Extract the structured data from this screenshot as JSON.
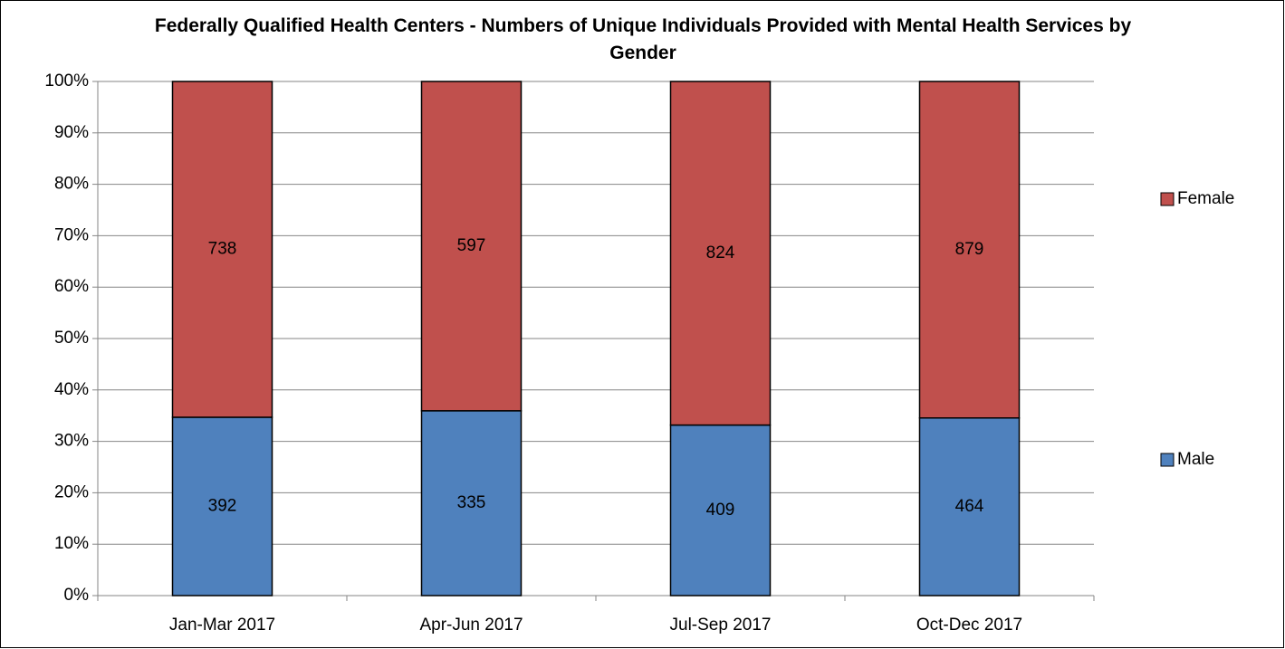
{
  "chart_data": {
    "type": "bar",
    "stacking": "percent",
    "title": "Federally Qualified Health Centers - Numbers of Unique Individuals Provided with Mental Health Services by Gender",
    "categories": [
      "Jan-Mar 2017",
      "Apr-Jun 2017",
      "Jul-Sep 2017",
      "Oct-Dec 2017"
    ],
    "series": [
      {
        "name": "Male",
        "color": "#4f81bd",
        "values": [
          392,
          335,
          409,
          464
        ]
      },
      {
        "name": "Female",
        "color": "#c0504d",
        "values": [
          738,
          597,
          824,
          879
        ]
      }
    ],
    "ylim": [
      0,
      100
    ],
    "yticks": [
      {
        "value": 0,
        "label": "0%"
      },
      {
        "value": 10,
        "label": "10%"
      },
      {
        "value": 20,
        "label": "20%"
      },
      {
        "value": 30,
        "label": "30%"
      },
      {
        "value": 40,
        "label": "40%"
      },
      {
        "value": 50,
        "label": "50%"
      },
      {
        "value": 60,
        "label": "60%"
      },
      {
        "value": 70,
        "label": "70%"
      },
      {
        "value": 80,
        "label": "80%"
      },
      {
        "value": 90,
        "label": "90%"
      },
      {
        "value": 100,
        "label": "100%"
      }
    ],
    "grid": true,
    "legend": "right"
  }
}
